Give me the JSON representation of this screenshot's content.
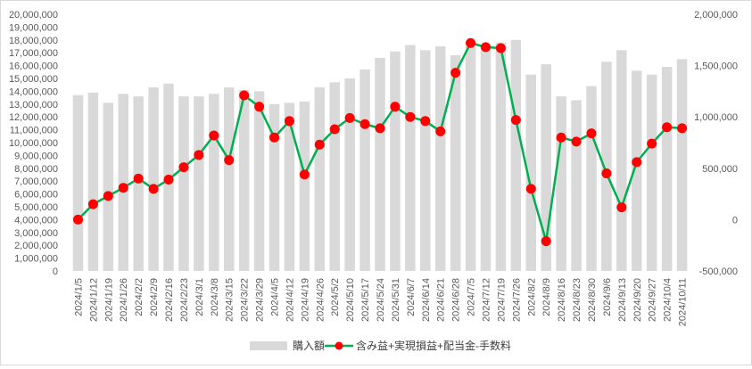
{
  "chart_data": {
    "type": "bar",
    "title": "",
    "xlabel": "",
    "ylabel": "",
    "categories": [
      "2024/1/5",
      "2024/1/12",
      "2024/1/19",
      "2024/1/26",
      "2024/2/2",
      "2024/2/9",
      "2024/2/16",
      "2024/2/23",
      "2024/3/1",
      "2024/3/8",
      "2024/3/15",
      "2024/3/22",
      "2024/3/29",
      "2024/4/5",
      "2024/4/12",
      "2024/4/19",
      "2024/4/26",
      "2024/5/2",
      "2024/5/10",
      "2024/5/17",
      "2024/5/24",
      "2024/5/31",
      "2024/6/7",
      "2024/6/14",
      "2024/6/21",
      "2024/6/28",
      "2024/7/5",
      "2024/7/12",
      "2024/7/19",
      "2024/7/26",
      "2024/8/2",
      "2024/8/9",
      "2024/8/16",
      "2024/8/23",
      "2024/8/30",
      "2024/9/6",
      "2024/9/13",
      "2024/9/20",
      "2024/9/27",
      "2024/10/4",
      "2024/10/11"
    ],
    "series": [
      {
        "name": "購入額",
        "type": "bar",
        "axis": "left",
        "color": "#d9d9d9",
        "values": [
          13700000,
          13900000,
          13100000,
          13800000,
          13600000,
          14300000,
          14600000,
          13600000,
          13600000,
          13800000,
          14300000,
          14100000,
          14000000,
          13000000,
          13100000,
          13200000,
          14300000,
          14700000,
          15000000,
          15700000,
          16600000,
          17100000,
          17600000,
          17200000,
          17500000,
          16800000,
          17500000,
          17500000,
          17800000,
          18000000,
          15300000,
          16100000,
          13600000,
          13300000,
          14400000,
          16300000,
          17200000,
          15600000,
          15300000,
          15900000,
          16500000
        ]
      },
      {
        "name": "含み益+実現損益+配当金-手数料",
        "type": "line",
        "axis": "right",
        "color": "#00b050",
        "marker_color": "#ff0000",
        "values": [
          0,
          150000,
          230000,
          310000,
          400000,
          300000,
          390000,
          510000,
          630000,
          820000,
          580000,
          1210000,
          1100000,
          800000,
          960000,
          440000,
          730000,
          880000,
          990000,
          930000,
          890000,
          1100000,
          1000000,
          960000,
          860000,
          1430000,
          1720000,
          1680000,
          1670000,
          970000,
          300000,
          -210000,
          800000,
          760000,
          840000,
          450000,
          120000,
          560000,
          740000,
          900000,
          890000
        ]
      }
    ],
    "left_axis": {
      "ylim": [
        0,
        20000000
      ],
      "ticks": [
        "0",
        "1,000,000",
        "2,000,000",
        "3,000,000",
        "4,000,000",
        "5,000,000",
        "6,000,000",
        "7,000,000",
        "8,000,000",
        "9,000,000",
        "10,000,000",
        "11,000,000",
        "12,000,000",
        "13,000,000",
        "14,000,000",
        "15,000,000",
        "16,000,000",
        "17,000,000",
        "18,000,000",
        "19,000,000",
        "20,000,000"
      ]
    },
    "right_axis": {
      "ylim": [
        -500000,
        2000000
      ],
      "ticks": [
        "-500,000",
        "0",
        "500,000",
        "1,000,000",
        "1,500,000",
        "2,000,000"
      ]
    },
    "grid": false,
    "legend_position": "bottom",
    "legend": [
      "購入額",
      "含み益+実現損益+配当金-手数料"
    ]
  }
}
